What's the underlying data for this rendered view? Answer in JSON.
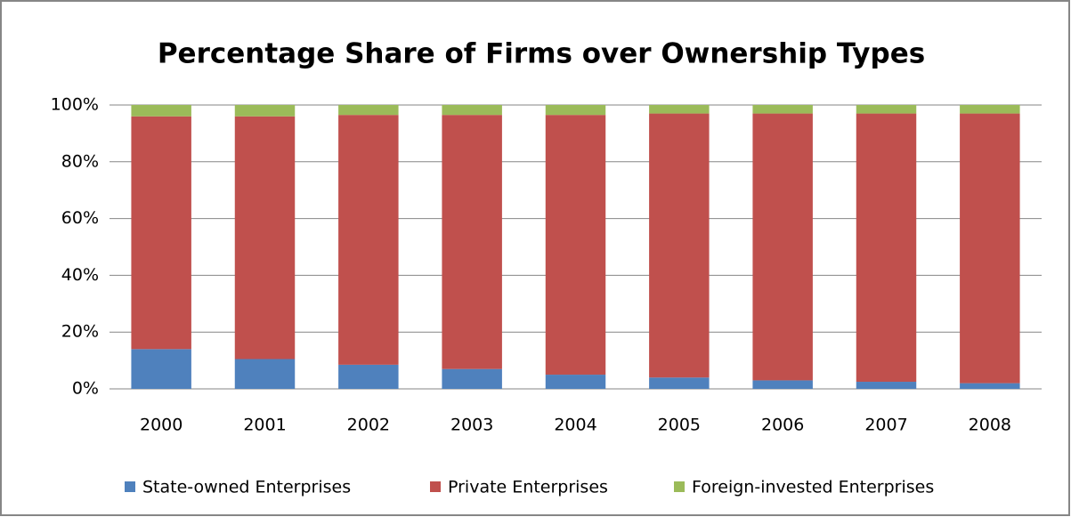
{
  "chart_data": {
    "type": "stacked_bar",
    "title": "Percentage Share of Firms over Ownership Types",
    "categories": [
      "2000",
      "2001",
      "2002",
      "2003",
      "2004",
      "2005",
      "2006",
      "2007",
      "2008"
    ],
    "series": [
      {
        "name": "State-owned Enterprises",
        "color": "#4f81bd",
        "values": [
          14,
          10.5,
          8.5,
          7,
          5,
          4,
          3,
          2.5,
          2
        ]
      },
      {
        "name": "Private Enterprises",
        "color": "#c0504d",
        "values": [
          82,
          85.5,
          88,
          89.5,
          91.5,
          93,
          94,
          94.5,
          95
        ]
      },
      {
        "name": "Foreign-invested Enterprises",
        "color": "#9bbb59",
        "values": [
          4,
          4,
          3.5,
          3.5,
          3.5,
          3,
          3,
          3,
          3
        ]
      }
    ],
    "ylim": [
      0,
      100
    ],
    "yticks": [
      {
        "value": 0,
        "label": "0%"
      },
      {
        "value": 20,
        "label": "20%"
      },
      {
        "value": 40,
        "label": "40%"
      },
      {
        "value": 60,
        "label": "60%"
      },
      {
        "value": 80,
        "label": "80%"
      },
      {
        "value": 100,
        "label": "100%"
      }
    ],
    "grid": true,
    "legend": "bottom"
  }
}
